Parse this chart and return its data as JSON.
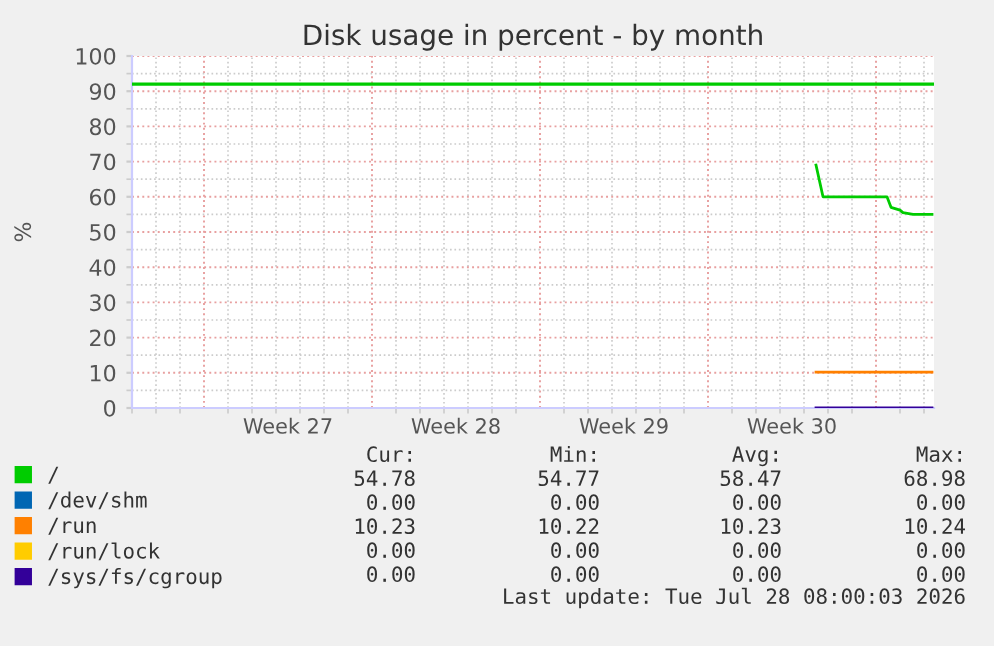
{
  "chart_data": {
    "type": "line",
    "title": "Disk usage in percent - by month",
    "ylabel": "%",
    "xlim": [
      "2026-06-26",
      "2026-07-29T10:00"
    ],
    "xticks": [
      {
        "value": "2026-06-29",
        "label": null
      },
      {
        "value": "2026-07-02T12:00",
        "label": "Week 27"
      },
      {
        "value": "2026-07-06",
        "label": null
      },
      {
        "value": "2026-07-09T12:00",
        "label": "Week 28"
      },
      {
        "value": "2026-07-13",
        "label": null
      },
      {
        "value": "2026-07-16T12:00",
        "label": "Week 29"
      },
      {
        "value": "2026-07-20",
        "label": null
      },
      {
        "value": "2026-07-23T12:00",
        "label": "Week 30"
      },
      {
        "value": "2026-07-27",
        "label": null
      }
    ],
    "ylim": [
      0,
      100
    ],
    "yticks": [
      0,
      10,
      20,
      30,
      40,
      50,
      60,
      70,
      80,
      90,
      100
    ],
    "grid": true,
    "legend": "bottom left",
    "marker": "none",
    "line_style": "solid",
    "series": [
      {
        "name": "/",
        "color": "#00cc00",
        "x": [
          "2026-07-24T12:00",
          "2026-07-24T19:00",
          "2026-07-27T11:00",
          "2026-07-27T15:00",
          "2026-07-28T00:00",
          "2026-07-28T03:00",
          "2026-07-28T13:00",
          "2026-07-29T08:00"
        ],
        "values": [
          69,
          60,
          60,
          57,
          56.2,
          55.5,
          55,
          55
        ]
      },
      {
        "name": "/dev/shm",
        "color": "#0066b3",
        "values": [
          null,
          null
        ]
      },
      {
        "name": "/run",
        "color": "#ff8000",
        "x": [
          "2026-07-24T12:00",
          "2026-07-29T08:00"
        ],
        "values": [
          10.2,
          10.2
        ]
      },
      {
        "name": "/run/lock",
        "color": "#ffcc00",
        "values": [
          null,
          null
        ]
      },
      {
        "name": "/sys/fs/cgroup",
        "color": "#330099",
        "x": [
          "2026-07-24T12:00",
          "2026-07-29T08:00"
        ],
        "values": [
          0,
          0
        ]
      }
    ],
    "ref_lines": [
      {
        "axis": "y",
        "value": 92,
        "color": "#00cc00",
        "line_style": "solid"
      }
    ],
    "annotations": [
      "Cur:",
      "Min:",
      "Avg:",
      "Max:",
      "54.78",
      "54.77",
      "58.47",
      "68.98",
      "0.00",
      "0.00",
      "0.00",
      "0.00",
      "10.23",
      "10.22",
      "10.23",
      "10.24",
      "0.00",
      "0.00",
      "0.00",
      "0.00",
      "0.00",
      "0.00",
      "0.00",
      "0.00",
      "Last update: Tue Jul 28 08:00:03 2026"
    ]
  }
}
